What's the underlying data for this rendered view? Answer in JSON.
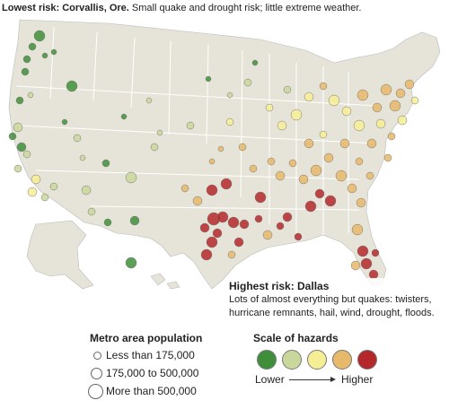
{
  "callouts": {
    "lowest_title": "Lowest risk: Corvallis, Ore.",
    "lowest_text": "Small quake and drought risk; little extreme weather.",
    "highest_title": "Highest risk: Dallas",
    "highest_text": "Lots of almost everything but quakes: twisters, hurricane remnants, hail, wind, drought, floods."
  },
  "legend_population": {
    "title": "Metro area population",
    "items": [
      "Less than 175,000",
      "175,000 to 500,000",
      "More than 500,000"
    ]
  },
  "legend_hazards": {
    "title": "Scale of hazards",
    "low_label": "Lower",
    "high_label": "Higher",
    "colors": [
      "#3f8f3a",
      "#c9d79a",
      "#f6ee95",
      "#e7b96a",
      "#b4282b"
    ]
  },
  "map": {
    "land_color": "#e6e4d8",
    "border_color": "#ffffff"
  }
}
